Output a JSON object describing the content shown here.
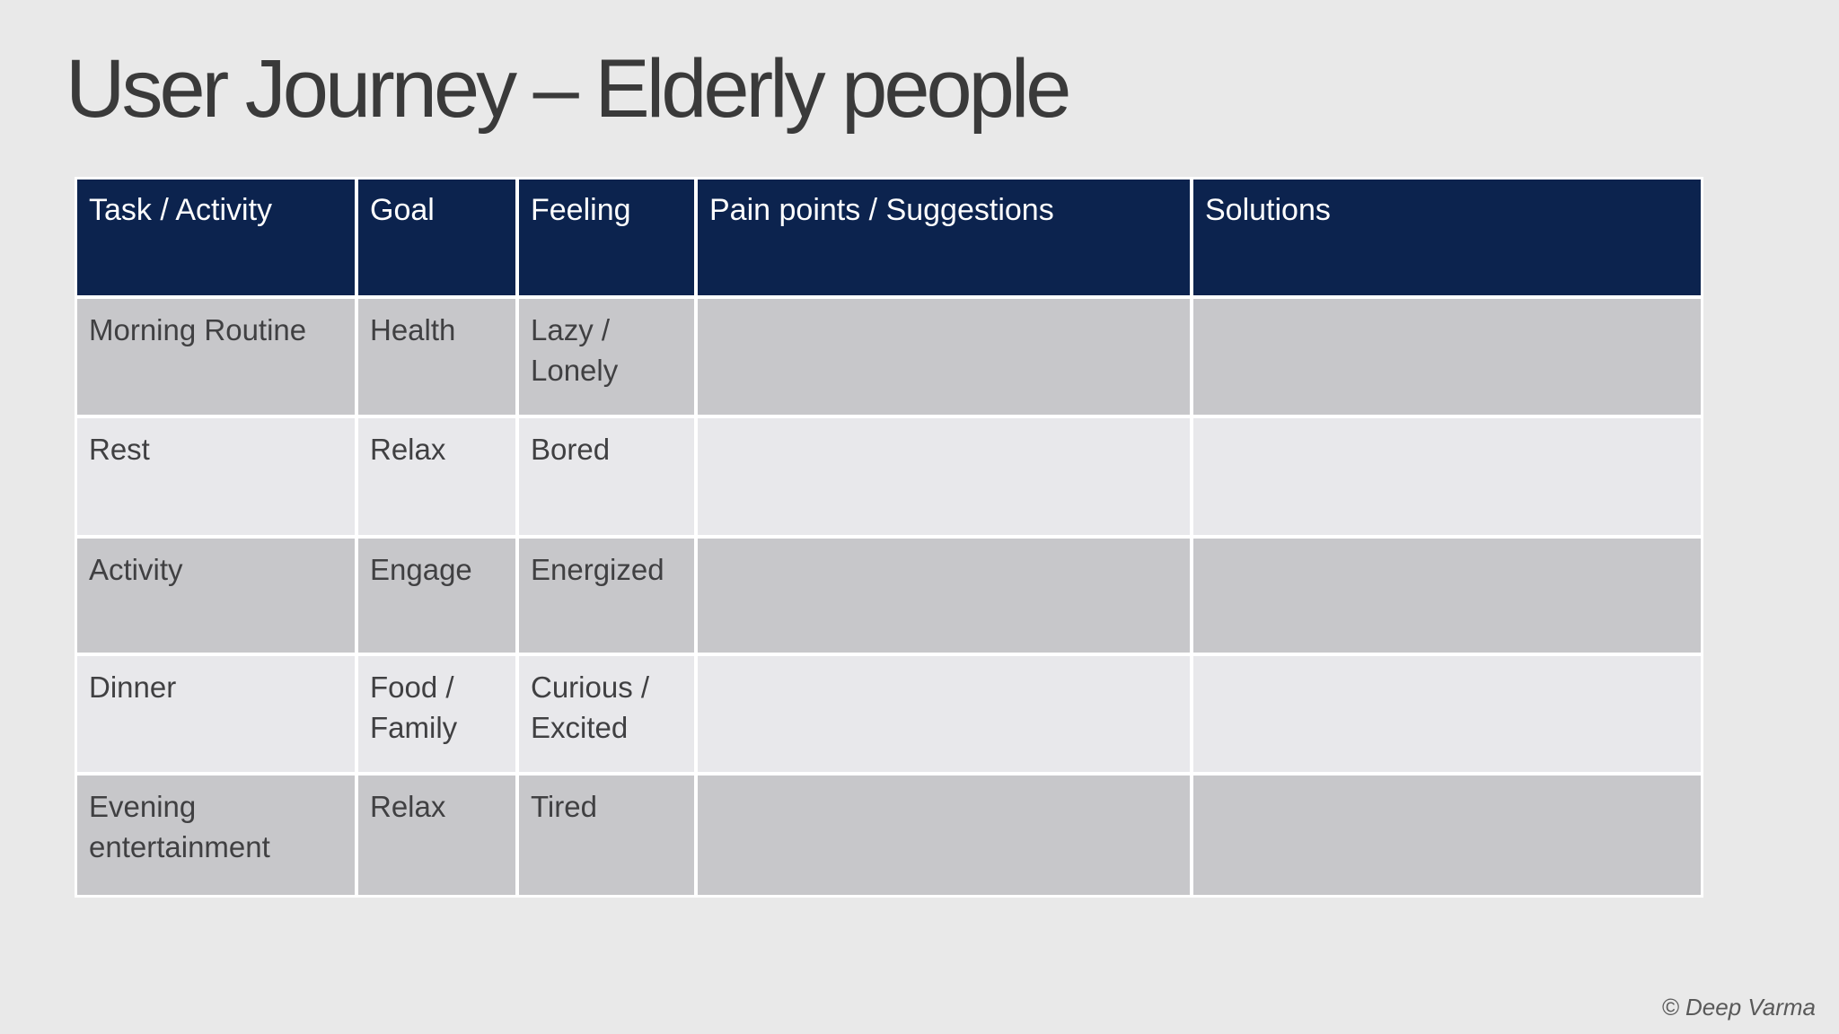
{
  "slide": {
    "title": "User Journey – Elderly people",
    "credit": "© Deep Varma"
  },
  "table": {
    "headers": [
      "Task / Activity",
      "Goal",
      "Feeling",
      "Pain points / Suggestions",
      "Solutions"
    ],
    "rows": [
      [
        "Morning Routine",
        "Health",
        "Lazy /\nLonely",
        "",
        ""
      ],
      [
        "Rest",
        "Relax",
        "Bored",
        "",
        ""
      ],
      [
        "Activity",
        "Engage",
        "Energized",
        "",
        ""
      ],
      [
        "Dinner",
        "Food /\nFamily",
        "Curious /\nExcited",
        "",
        ""
      ],
      [
        "Evening\nentertainment",
        "Relax",
        "Tired",
        "",
        ""
      ]
    ]
  },
  "colors": {
    "background": "#e9e9e9",
    "header_bg": "#0c234e",
    "row_dark": "#c7c7ca",
    "row_light": "#e8e8eb",
    "divider": "#ffffff",
    "title_text": "#3a3a3a",
    "cell_text": "#404042",
    "header_text": "#ffffff",
    "credit_text": "#595959"
  }
}
